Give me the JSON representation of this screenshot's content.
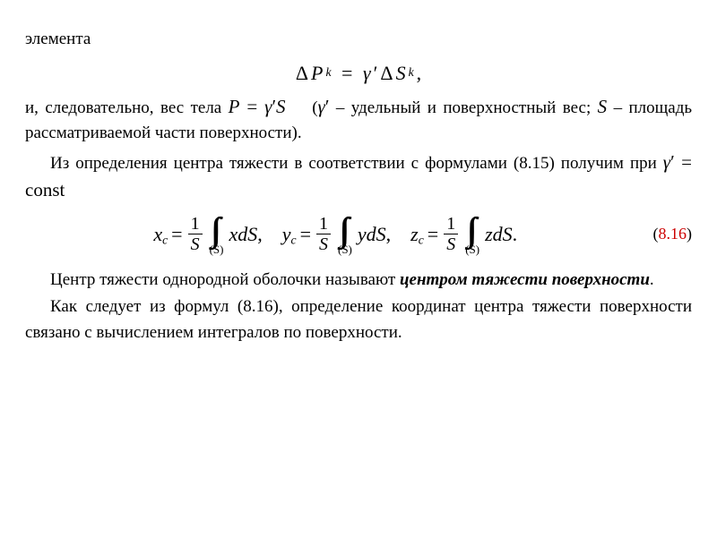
{
  "colors": {
    "text": "#000000",
    "background": "#ffffff",
    "eqnum_red": "#cc0000"
  },
  "fonts": {
    "body": "Times New Roman",
    "body_size_pt": 14,
    "math_size_pt": 16
  },
  "p1": "элемента",
  "eq1": {
    "lhs_delta": "Δ",
    "lhs_P": "P",
    "lhs_sub": "k",
    "eq": "=",
    "gamma": "γ",
    "prime": "′",
    "delta2": "Δ",
    "S": "S",
    "S_sub": "k",
    "comma": ","
  },
  "p2_a": "и, следовательно, вес тела ",
  "p2_math1_P": "P",
  "p2_math1_eq": " = ",
  "p2_math1_gamma": "γ",
  "p2_math1_prime": "′",
  "p2_math1_S": "S",
  "p2_b": " (",
  "p2_math2_gamma": "γ",
  "p2_math2_prime": "′",
  "p2_c": " – удельный и поверхностный вес; ",
  "p2_math3_S": "S",
  "p2_d": " – площадь рассматриваемой части поверхности).",
  "p3_a": "Из определения центра тяжести в соответствии с формулами (8.15) получим при ",
  "p3_math_gamma": "γ",
  "p3_math_prime": "′",
  "p3_math_eq": " = ",
  "p3_math_const": "const",
  "eq816": {
    "var_x": "x",
    "var_y": "y",
    "var_z": "z",
    "sub_c": "c",
    "eq": "=",
    "frac_num": "1",
    "frac_den": "S",
    "int_glyph": "∫∫",
    "int_sub": "(S)",
    "d": "d",
    "S": "S",
    "tail_x": ",",
    "tail_y": ",",
    "tail_z": ".",
    "number_open": "(",
    "number": "8.16",
    "number_close": ")"
  },
  "p4_a": "Центр тяжести однородной оболочки называют ",
  "p4_b": "центром тяжести поверхности",
  "p4_c": ".",
  "p5": "Как следует из формул (8.16), определение координат центра тяжести поверхности связано с вычислением интегралов по поверхности."
}
